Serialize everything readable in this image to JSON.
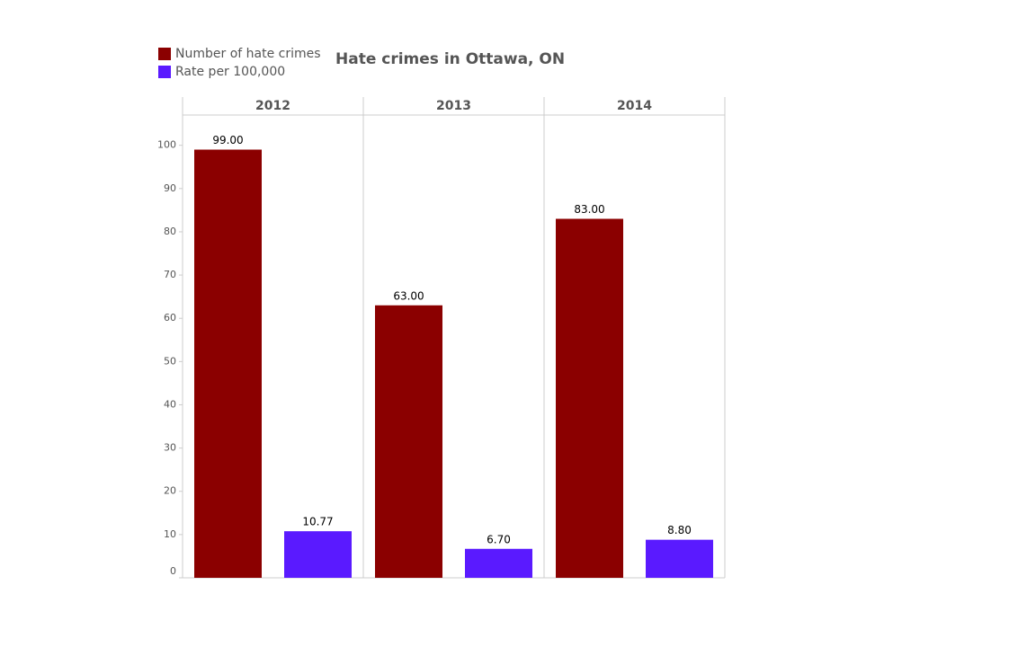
{
  "chart_data": {
    "type": "bar",
    "title": "Hate crimes in Ottawa, ON",
    "categories": [
      "2012",
      "2013",
      "2014"
    ],
    "series": [
      {
        "name": "Number of hate crimes",
        "color": "#8b0000",
        "values": [
          99,
          63,
          83
        ],
        "value_labels": [
          "99.00",
          "63.00",
          "83.00"
        ]
      },
      {
        "name": "Rate per 100,000",
        "color": "#5a1aff",
        "values": [
          10.77,
          6.7,
          8.8
        ],
        "value_labels": [
          "10.77",
          "6.70",
          "8.80"
        ]
      }
    ],
    "ylim": [
      0,
      107
    ],
    "yticks": [
      0,
      10,
      20,
      30,
      40,
      50,
      60,
      70,
      80,
      90,
      100
    ],
    "legend": "top-left"
  }
}
